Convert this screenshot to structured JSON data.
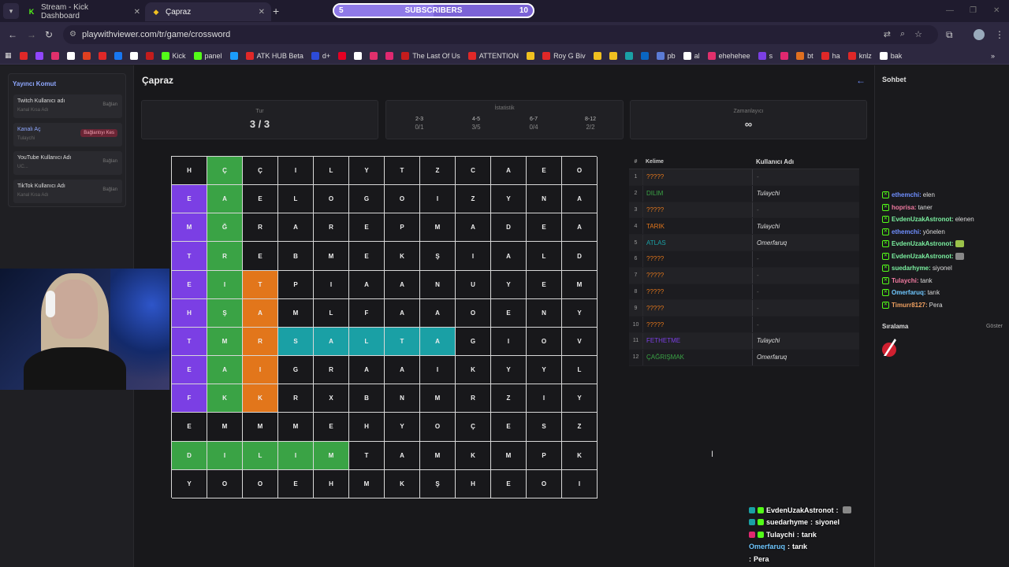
{
  "browser": {
    "tabs": [
      {
        "title": "Stream - Kick Dashboard",
        "active": false,
        "icon": "kick-icon",
        "icon_char": "K",
        "icon_color": "#53fc18"
      },
      {
        "title": "Çapraz",
        "active": true,
        "icon": "crossword-icon",
        "icon_char": "◆",
        "icon_color": "#f0c020"
      }
    ],
    "url": "playwithviewer.com/tr/game/crossword",
    "bookmarks": [
      {
        "label": "",
        "color": "#e02828"
      },
      {
        "label": "",
        "color": "#9146ff"
      },
      {
        "label": "",
        "color": "#e1306c"
      },
      {
        "label": "",
        "color": "#ffffff"
      },
      {
        "label": "",
        "color": "#e04020"
      },
      {
        "label": "",
        "color": "#e02828"
      },
      {
        "label": "",
        "color": "#1877f2"
      },
      {
        "label": "",
        "color": "#ffffff"
      },
      {
        "label": "",
        "color": "#c41c1c"
      },
      {
        "label": "Kick",
        "color": "#53fc18"
      },
      {
        "label": "panel",
        "color": "#53fc18"
      },
      {
        "label": "",
        "color": "#1b9cfc"
      },
      {
        "label": "ATK HUB Beta",
        "color": "#e02828"
      },
      {
        "label": "d+",
        "color": "#2d4bd8"
      },
      {
        "label": "",
        "color": "#e60023"
      },
      {
        "label": "",
        "color": "#ffffff"
      },
      {
        "label": "",
        "color": "#e1306c"
      },
      {
        "label": "",
        "color": "#e02870"
      },
      {
        "label": "The Last Of Us",
        "color": "#c41c1c"
      },
      {
        "label": "ATTENTION",
        "color": "#e02828"
      },
      {
        "label": "",
        "color": "#f0c020"
      },
      {
        "label": "Roy G Biv",
        "color": "#e02828"
      },
      {
        "label": "",
        "color": "#f0c020"
      },
      {
        "label": "",
        "color": "#f0c020"
      },
      {
        "label": "",
        "color": "#1aa0a5"
      },
      {
        "label": "",
        "color": "#0a66c2"
      },
      {
        "label": "pb",
        "color": "#5b7bd5"
      },
      {
        "label": "al",
        "color": "#ffffff"
      },
      {
        "label": "ehehehee",
        "color": "#e1306c"
      },
      {
        "label": "s",
        "color": "#7b3fe4"
      },
      {
        "label": "",
        "color": "#e02870"
      },
      {
        "label": "bt",
        "color": "#e07020"
      },
      {
        "label": "ha",
        "color": "#e02828"
      },
      {
        "label": "knlz",
        "color": "#e02828"
      },
      {
        "label": "bak",
        "color": "#ffffff"
      }
    ]
  },
  "subscribers_widget": {
    "current": "5",
    "label": "SUBSCRIBERS",
    "goal": "10",
    "progress_fraction": 0.5
  },
  "left_panel": {
    "title": "Yayıncı Komut",
    "rows": [
      {
        "label": "Twitch Kullanıcı adı",
        "placeholder": "Kanal Kısa Adı",
        "button": "Bağlan",
        "danger": false
      },
      {
        "label": "Kanalı Aç",
        "placeholder": "Tulaychi",
        "button": "Bağlantıyı Kes",
        "danger": true
      },
      {
        "label": "YouTube Kullanıcı Adı",
        "placeholder": "UC...",
        "button": "Bağlan",
        "danger": false
      },
      {
        "label": "TikTok Kullanıcı Adı",
        "placeholder": "Kanal Kısa Adı",
        "button": "Bağlan",
        "danger": false
      }
    ]
  },
  "game": {
    "title": "Çapraz",
    "round": {
      "label": "Tur",
      "value": "3 / 3"
    },
    "stats": {
      "label": "İstatistik",
      "cols": [
        {
          "range": "2-3",
          "value": "0/1"
        },
        {
          "range": "4-5",
          "value": "3/5"
        },
        {
          "range": "6-7",
          "value": "0/4"
        },
        {
          "range": "8-12",
          "value": "2/2"
        }
      ]
    },
    "timer": {
      "label": "Zamanlayıcı",
      "value": "∞"
    },
    "grid": [
      [
        "H",
        "Ç",
        "Ç",
        "I",
        "L",
        "Y",
        "T",
        "Z",
        "C",
        "A",
        "E",
        "O"
      ],
      [
        "E",
        "A",
        "E",
        "L",
        "O",
        "G",
        "O",
        "I",
        "Z",
        "Y",
        "N",
        "A"
      ],
      [
        "M",
        "Ğ",
        "R",
        "A",
        "R",
        "E",
        "P",
        "M",
        "A",
        "D",
        "E",
        "A"
      ],
      [
        "T",
        "R",
        "E",
        "B",
        "M",
        "E",
        "K",
        "Ş",
        "I",
        "A",
        "L",
        "D"
      ],
      [
        "E",
        "I",
        "T",
        "P",
        "I",
        "A",
        "A",
        "N",
        "U",
        "Y",
        "E",
        "M"
      ],
      [
        "H",
        "Ş",
        "A",
        "M",
        "L",
        "F",
        "A",
        "A",
        "O",
        "E",
        "N",
        "Y"
      ],
      [
        "T",
        "M",
        "R",
        "S",
        "A",
        "L",
        "T",
        "A",
        "G",
        "I",
        "O",
        "V"
      ],
      [
        "E",
        "A",
        "I",
        "G",
        "R",
        "A",
        "A",
        "I",
        "K",
        "Y",
        "Y",
        "L"
      ],
      [
        "F",
        "K",
        "K",
        "R",
        "X",
        "B",
        "N",
        "M",
        "R",
        "Z",
        "I",
        "Y"
      ],
      [
        "E",
        "M",
        "M",
        "M",
        "E",
        "H",
        "Y",
        "O",
        "Ç",
        "E",
        "S",
        "Z"
      ],
      [
        "D",
        "I",
        "L",
        "I",
        "M",
        "T",
        "A",
        "M",
        "K",
        "M",
        "P",
        "K"
      ],
      [
        "Y",
        "O",
        "O",
        "E",
        "H",
        "M",
        "K",
        "Ş",
        "H",
        "E",
        "O",
        "I"
      ]
    ],
    "highlights": {
      "purple": [
        [
          1,
          0
        ],
        [
          2,
          0
        ],
        [
          3,
          0
        ],
        [
          4,
          0
        ],
        [
          5,
          0
        ],
        [
          6,
          0
        ],
        [
          7,
          0
        ],
        [
          8,
          0
        ]
      ],
      "green": [
        [
          0,
          1
        ],
        [
          1,
          1
        ],
        [
          2,
          1
        ],
        [
          3,
          1
        ],
        [
          4,
          1
        ],
        [
          5,
          1
        ],
        [
          6,
          1
        ],
        [
          7,
          1
        ],
        [
          8,
          1
        ],
        [
          10,
          0
        ],
        [
          10,
          1
        ],
        [
          10,
          2
        ],
        [
          10,
          3
        ],
        [
          10,
          4
        ]
      ],
      "orange": [
        [
          4,
          2
        ],
        [
          5,
          2
        ],
        [
          6,
          2
        ],
        [
          7,
          2
        ],
        [
          8,
          2
        ]
      ],
      "teal": [
        [
          6,
          3
        ],
        [
          6,
          4
        ],
        [
          6,
          5
        ],
        [
          6,
          6
        ],
        [
          6,
          7
        ]
      ]
    },
    "word_table": {
      "headers": {
        "num": "#",
        "word": "Kelime",
        "user": "Kullanıcı Adı"
      },
      "rows": [
        {
          "num": "1",
          "word": "?????",
          "user": "-",
          "color": "#e2761b"
        },
        {
          "num": "2",
          "word": "DILIM",
          "user": "Tulaychi",
          "color": "#3aa345"
        },
        {
          "num": "3",
          "word": "?????",
          "user": "-",
          "color": "#e2761b"
        },
        {
          "num": "4",
          "word": "TARIK",
          "user": "Tulaychi",
          "color": "#e2761b"
        },
        {
          "num": "5",
          "word": "ATLAS",
          "user": "Omerfaruq",
          "color": "#1aa0a5"
        },
        {
          "num": "6",
          "word": "?????",
          "user": "-",
          "color": "#e2761b"
        },
        {
          "num": "7",
          "word": "?????",
          "user": "-",
          "color": "#e2761b"
        },
        {
          "num": "8",
          "word": "?????",
          "user": "-",
          "color": "#e2761b"
        },
        {
          "num": "9",
          "word": "?????",
          "user": "-",
          "color": "#e2761b"
        },
        {
          "num": "10",
          "word": "?????",
          "user": "-",
          "color": "#e2761b"
        },
        {
          "num": "11",
          "word": "FETHETME",
          "user": "Tulaychi",
          "color": "#7b3fe4"
        },
        {
          "num": "12",
          "word": "ÇAĞRIŞMAK",
          "user": "Omerfaruq",
          "color": "#3aa345"
        }
      ]
    }
  },
  "chat": {
    "title": "Sohbet",
    "messages": [
      {
        "user": "ethemchi",
        "color": "#6f8fff",
        "text": "elen",
        "emote": ""
      },
      {
        "user": "hoprisa",
        "color": "#f07aa0",
        "text": "taner",
        "emote": ""
      },
      {
        "user": "EvdenUzakAstronot",
        "color": "#7bf0a0",
        "text": "elenen",
        "emote": ""
      },
      {
        "user": "ethemchi",
        "color": "#6f8fff",
        "text": "yönelen",
        "emote": ""
      },
      {
        "user": "EvdenUzakAstronot",
        "color": "#7bf0a0",
        "text": "",
        "emote": "#9bc24a"
      },
      {
        "user": "EvdenUzakAstronot",
        "color": "#7bf0a0",
        "text": "",
        "emote": "#888888"
      },
      {
        "user": "suedarhyme",
        "color": "#7bf0a0",
        "text": "siyonel",
        "emote": ""
      },
      {
        "user": "Tulaychi",
        "color": "#f07aa0",
        "text": "tank",
        "emote": ""
      },
      {
        "user": "Omerfaruq",
        "color": "#6fc7ff",
        "text": "tarık",
        "emote": ""
      },
      {
        "user": "Timurr8127",
        "color": "#f0a060",
        "text": "Pera",
        "emote": ""
      }
    ],
    "ranking_title": "Sıralama",
    "ranking_show": "Göster"
  },
  "overlay_chat": [
    {
      "user": "EvdenUzakAstronot",
      "text": "",
      "emote": true,
      "badges": [
        "#1aa0a5",
        "#53fc18"
      ]
    },
    {
      "user": "suedarhyme",
      "text": "siyonel",
      "emote": false,
      "badges": [
        "#1aa0a5",
        "#53fc18"
      ]
    },
    {
      "user": "Tulaychi",
      "text": "tarık",
      "emote": false,
      "badges": [
        "#e02870",
        "#53fc18"
      ]
    },
    {
      "user": "Omerfaruq",
      "text": "tarık",
      "emote": false,
      "badges": []
    },
    {
      "user": "",
      "text": "Pera",
      "emote": false,
      "badges": []
    }
  ]
}
